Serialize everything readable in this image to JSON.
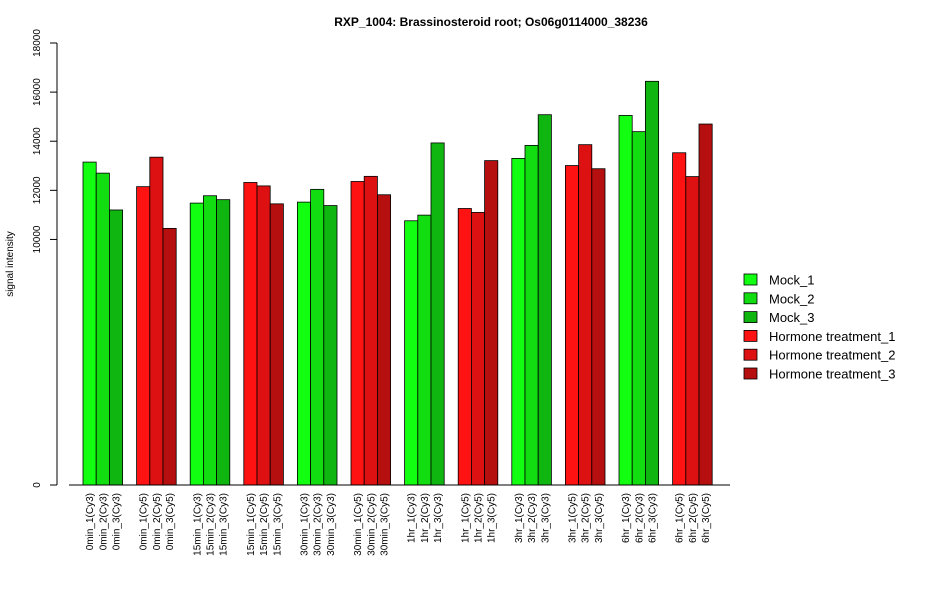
{
  "chart_data": {
    "type": "bar",
    "title": "RXP_1004: Brassinosteroid root; Os06g0114000_38236",
    "ylabel": "signal intensity",
    "xlabel": "",
    "ylim": [
      0,
      18000
    ],
    "yticks": [
      0,
      10000,
      12000,
      14000,
      16000,
      18000
    ],
    "grid": false,
    "legend_position": "right",
    "legend": [
      {
        "name": "Mock_1",
        "color": "#12ff12"
      },
      {
        "name": "Mock_2",
        "color": "#11dd11"
      },
      {
        "name": "Mock_3",
        "color": "#0fb60f"
      },
      {
        "name": "Hormone treatment_1",
        "color": "#ff1212"
      },
      {
        "name": "Hormone treatment_2",
        "color": "#dd1111"
      },
      {
        "name": "Hormone treatment_3",
        "color": "#b60f0f"
      }
    ],
    "groups": [
      {
        "labels": [
          "0min_1(Cy3)",
          "0min_2(Cy3)",
          "0min_3(Cy3)"
        ],
        "values": [
          13150,
          12700,
          11200
        ],
        "colors": [
          "#12ff12",
          "#11dd11",
          "#0fb60f"
        ]
      },
      {
        "labels": [
          "0min_1(Cy5)",
          "0min_2(Cy5)",
          "0min_3(Cy5)"
        ],
        "values": [
          12150,
          13350,
          10450
        ],
        "colors": [
          "#ff1212",
          "#dd1111",
          "#b60f0f"
        ]
      },
      {
        "labels": [
          "15min_1(Cy3)",
          "15min_2(Cy3)",
          "15min_3(Cy3)"
        ],
        "values": [
          11480,
          11780,
          11620
        ],
        "colors": [
          "#12ff12",
          "#11dd11",
          "#0fb60f"
        ]
      },
      {
        "labels": [
          "15min_1(Cy5)",
          "15min_2(Cy5)",
          "15min_3(Cy5)"
        ],
        "values": [
          12320,
          12180,
          11450
        ],
        "colors": [
          "#ff1212",
          "#dd1111",
          "#b60f0f"
        ]
      },
      {
        "labels": [
          "30min_1(Cy3)",
          "30min_2(Cy3)",
          "30min_3(Cy3)"
        ],
        "values": [
          11520,
          12040,
          11380
        ],
        "colors": [
          "#12ff12",
          "#11dd11",
          "#0fb60f"
        ]
      },
      {
        "labels": [
          "30min_1(Cy5)",
          "30min_2(Cy5)",
          "30min_3(Cy5)"
        ],
        "values": [
          12360,
          12570,
          11820
        ],
        "colors": [
          "#ff1212",
          "#dd1111",
          "#b60f0f"
        ]
      },
      {
        "labels": [
          "1hr_1(Cy3)",
          "1hr_2(Cy3)",
          "1hr_3(Cy3)"
        ],
        "values": [
          10760,
          10990,
          13930
        ],
        "colors": [
          "#12ff12",
          "#11dd11",
          "#0fb60f"
        ]
      },
      {
        "labels": [
          "1hr_1(Cy5)",
          "1hr_2(Cy5)",
          "1hr_3(Cy5)"
        ],
        "values": [
          11260,
          11100,
          13210
        ],
        "colors": [
          "#ff1212",
          "#dd1111",
          "#b60f0f"
        ]
      },
      {
        "labels": [
          "3hr_1(Cy3)",
          "3hr_2(Cy3)",
          "3hr_3(Cy3)"
        ],
        "values": [
          13300,
          13830,
          15080
        ],
        "colors": [
          "#12ff12",
          "#11dd11",
          "#0fb60f"
        ]
      },
      {
        "labels": [
          "3hr_1(Cy5)",
          "3hr_2(Cy5)",
          "3hr_3(Cy5)"
        ],
        "values": [
          13010,
          13860,
          12880
        ],
        "colors": [
          "#ff1212",
          "#dd1111",
          "#b60f0f"
        ]
      },
      {
        "labels": [
          "6hr_1(Cy3)",
          "6hr_2(Cy3)",
          "6hr_3(Cy3)"
        ],
        "values": [
          15050,
          14390,
          16440
        ],
        "colors": [
          "#12ff12",
          "#11dd11",
          "#0fb60f"
        ]
      },
      {
        "labels": [
          "6hr_1(Cy5)",
          "6hr_2(Cy5)",
          "6hr_3(Cy5)"
        ],
        "values": [
          13530,
          12560,
          14700
        ],
        "colors": [
          "#ff1212",
          "#dd1111",
          "#b60f0f"
        ]
      }
    ]
  }
}
